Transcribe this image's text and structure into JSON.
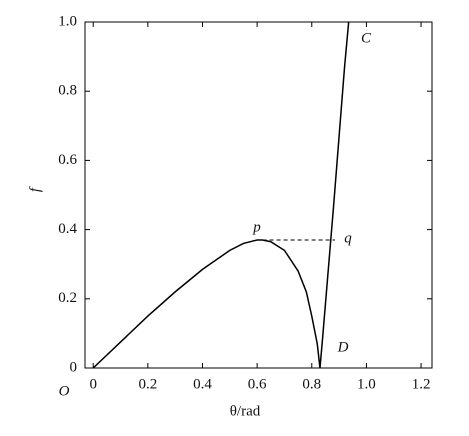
{
  "chart_data": {
    "type": "line",
    "x_label": "θ/rad",
    "y_label": "f",
    "series": [
      {
        "name": "f",
        "color": "#000000",
        "x": [
          0,
          0.1,
          0.2,
          0.3,
          0.4,
          0.5,
          0.55,
          0.6,
          0.62,
          0.65,
          0.7,
          0.75,
          0.78,
          0.8,
          0.82,
          0.83,
          0.84,
          0.86,
          0.88,
          0.9,
          0.92,
          0.935
        ],
        "values": [
          0,
          0.075,
          0.15,
          0.22,
          0.285,
          0.34,
          0.36,
          0.37,
          0.37,
          0.365,
          0.34,
          0.28,
          0.22,
          0.15,
          0.07,
          0,
          0.09,
          0.28,
          0.47,
          0.67,
          0.87,
          1.0
        ]
      }
    ],
    "reference_line": {
      "x": [
        0.62,
        0.885
      ],
      "y": 0.37
    },
    "annotations": [
      "p",
      "q",
      "C",
      "D",
      "O"
    ],
    "xlim": [
      -0.03,
      1.24
    ],
    "ylim": [
      0,
      1
    ],
    "xticks": [
      0,
      0.2,
      0.4,
      0.6,
      0.8,
      {
        "value": 1,
        "label": "1.0"
      },
      1.2
    ],
    "yticks": [
      0,
      0.2,
      0.4,
      0.6,
      0.8,
      {
        "value": 1,
        "label": "1.0"
      }
    ]
  }
}
